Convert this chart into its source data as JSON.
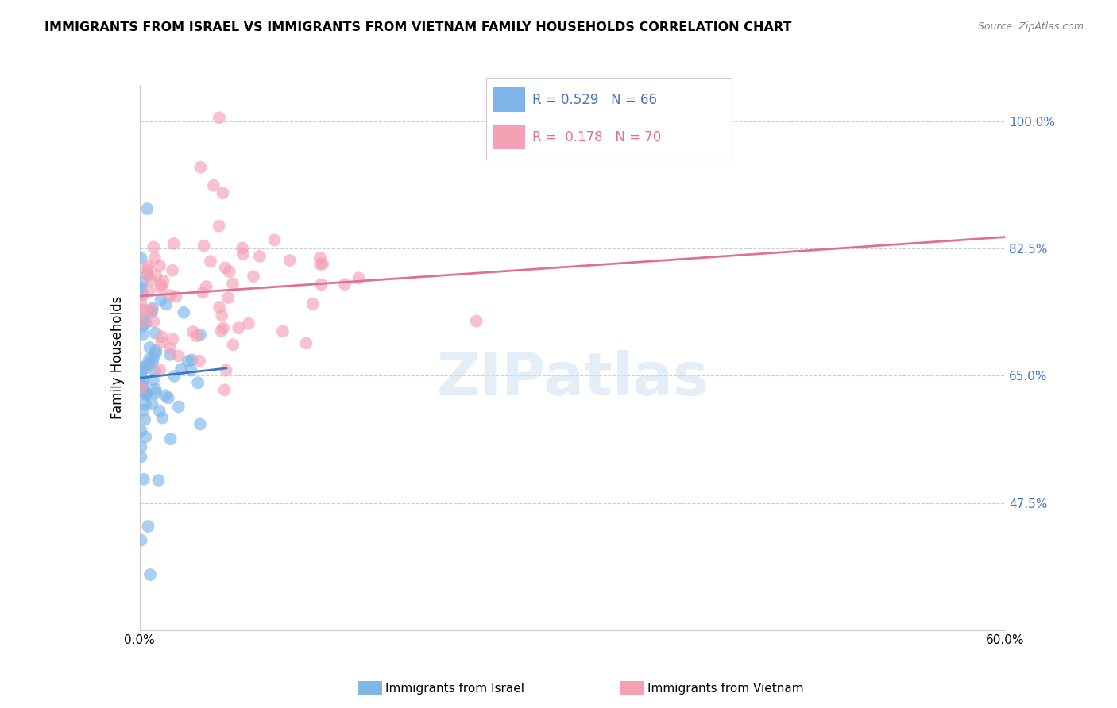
{
  "title": "IMMIGRANTS FROM ISRAEL VS IMMIGRANTS FROM VIETNAM FAMILY HOUSEHOLDS CORRELATION CHART",
  "source": "Source: ZipAtlas.com",
  "ylabel": "Family Households",
  "xlim": [
    0.0,
    0.6
  ],
  "ylim": [
    0.3,
    1.05
  ],
  "watermark": "ZIPatlas",
  "israel_R": 0.529,
  "israel_N": 66,
  "vietnam_R": 0.178,
  "vietnam_N": 70,
  "israel_color": "#7eb6e8",
  "vietnam_color": "#f4a0b5",
  "israel_line_color": "#3a7abf",
  "vietnam_line_color": "#e07090",
  "grid_color": "#cccccc",
  "right_tick_color": "#4472C4",
  "ytick_positions": [
    0.475,
    0.65,
    0.825,
    1.0
  ],
  "ytick_labels": [
    "47.5%",
    "65.0%",
    "82.5%",
    "100.0%"
  ]
}
